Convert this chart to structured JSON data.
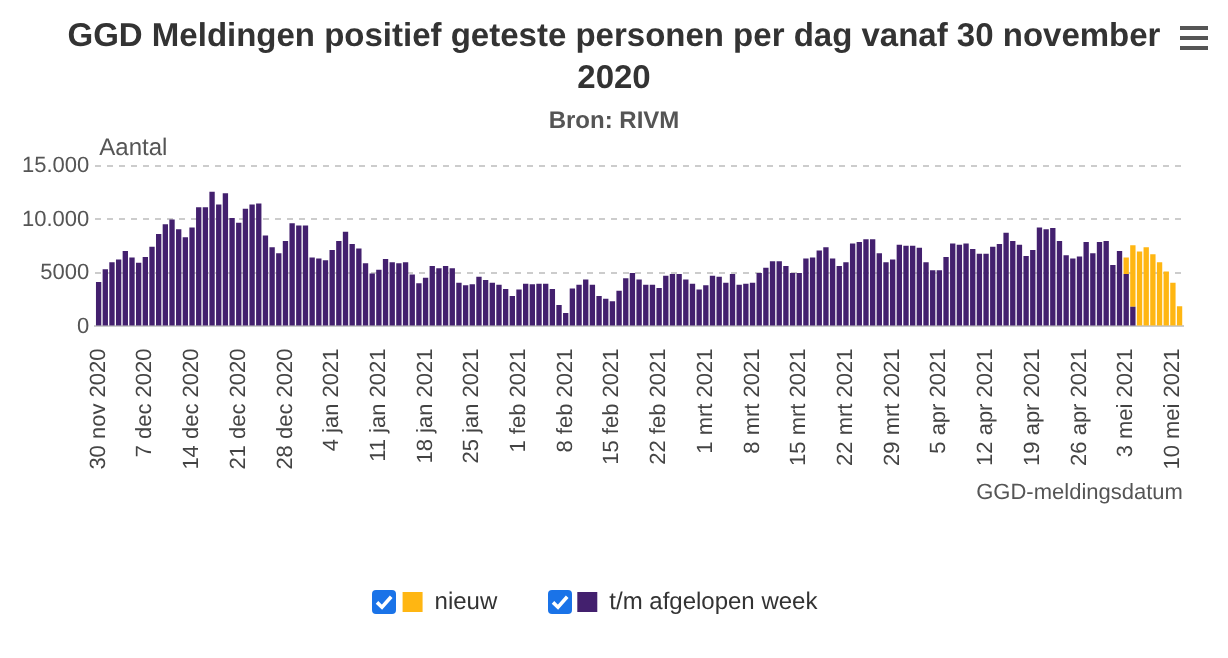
{
  "chart_data": {
    "type": "bar",
    "title": "GGD Meldingen positief geteste personen per dag vanaf 30 november 2020",
    "subtitle": "Bron: RIVM",
    "ylabel": "Aantal",
    "xlabel": "GGD-meldingsdatum",
    "categories": [
      "30 nov 2020",
      null,
      null,
      null,
      null,
      null,
      null,
      "7 dec 2020",
      null,
      null,
      null,
      null,
      null,
      null,
      "14 dec 2020",
      null,
      null,
      null,
      null,
      null,
      null,
      "21 dec 2020",
      null,
      null,
      null,
      null,
      null,
      null,
      "28 dec 2020",
      null,
      null,
      null,
      null,
      null,
      null,
      "4 jan 2021",
      null,
      null,
      null,
      null,
      null,
      null,
      "11 jan 2021",
      null,
      null,
      null,
      null,
      null,
      null,
      "18 jan 2021",
      null,
      null,
      null,
      null,
      null,
      null,
      "25 jan 2021",
      null,
      null,
      null,
      null,
      null,
      null,
      "1 feb 2021",
      null,
      null,
      null,
      null,
      null,
      null,
      "8 feb 2021",
      null,
      null,
      null,
      null,
      null,
      null,
      "15 feb 2021",
      null,
      null,
      null,
      null,
      null,
      null,
      "22 feb 2021",
      null,
      null,
      null,
      null,
      null,
      null,
      "1 mrt 2021",
      null,
      null,
      null,
      null,
      null,
      null,
      "8 mrt 2021",
      null,
      null,
      null,
      null,
      null,
      null,
      "15 mrt 2021",
      null,
      null,
      null,
      null,
      null,
      null,
      "22 mrt 2021",
      null,
      null,
      null,
      null,
      null,
      null,
      "29 mrt 2021",
      null,
      null,
      null,
      null,
      null,
      null,
      "5 apr 2021",
      null,
      null,
      null,
      null,
      null,
      null,
      "12 apr 2021",
      null,
      null,
      null,
      null,
      null,
      null,
      "19 apr 2021",
      null,
      null,
      null,
      null,
      null,
      null,
      "26 apr 2021",
      null,
      null,
      null,
      null,
      null,
      null,
      "3 mei 2021",
      null,
      null,
      null,
      null,
      null,
      null,
      "10 mei 2021",
      null
    ],
    "series": [
      {
        "name": "t/m afgelopen week",
        "color": "#43206e",
        "values": [
          4150,
          5350,
          6000,
          6250,
          7050,
          6450,
          5950,
          6500,
          7450,
          8650,
          9550,
          10000,
          9100,
          8350,
          9250,
          11150,
          11150,
          12600,
          11400,
          12450,
          10150,
          9700,
          11000,
          11400,
          11500,
          8500,
          7400,
          6850,
          8000,
          9650,
          9450,
          9450,
          6450,
          6350,
          6200,
          7150,
          8000,
          8850,
          7700,
          7300,
          5900,
          4950,
          5300,
          6300,
          6000,
          5900,
          6000,
          4850,
          4050,
          4550,
          5650,
          5450,
          5650,
          5450,
          4100,
          3850,
          3950,
          4650,
          4350,
          4100,
          3900,
          3500,
          2850,
          3450,
          4000,
          3950,
          4000,
          4000,
          3500,
          2000,
          1250,
          3550,
          3900,
          4400,
          3900,
          2850,
          2600,
          2350,
          3350,
          4500,
          5000,
          4400,
          3900,
          3900,
          3600,
          4750,
          4900,
          4900,
          4400,
          4000,
          3450,
          3850,
          4750,
          4650,
          4100,
          4900,
          3900,
          4000,
          4100,
          5000,
          5500,
          6100,
          6100,
          5650,
          5000,
          5000,
          6350,
          6450,
          7100,
          7400,
          6350,
          5650,
          6000,
          7750,
          7900,
          8150,
          8150,
          6850,
          6000,
          6250,
          7650,
          7550,
          7550,
          7350,
          6000,
          5250,
          5250,
          6500,
          7750,
          7650,
          7750,
          7250,
          6800,
          6800,
          7450,
          7700,
          8750,
          8000,
          7650,
          6600,
          7150,
          9250,
          9100,
          9200,
          8000,
          6650,
          6350,
          6550,
          7900,
          6850,
          7900,
          8000,
          5750,
          7050,
          4900,
          1850,
          null,
          null,
          null,
          null,
          null,
          null,
          null
        ]
      },
      {
        "name": "nieuw",
        "color": "#ffb612",
        "values": [
          null,
          null,
          null,
          null,
          null,
          null,
          null,
          null,
          null,
          null,
          null,
          null,
          null,
          null,
          null,
          null,
          null,
          null,
          null,
          null,
          null,
          null,
          null,
          null,
          null,
          null,
          null,
          null,
          null,
          null,
          null,
          null,
          null,
          null,
          null,
          null,
          null,
          null,
          null,
          null,
          null,
          null,
          null,
          null,
          null,
          null,
          null,
          null,
          null,
          null,
          null,
          null,
          null,
          null,
          null,
          null,
          null,
          null,
          null,
          null,
          null,
          null,
          null,
          null,
          null,
          null,
          null,
          null,
          null,
          null,
          null,
          null,
          null,
          null,
          null,
          null,
          null,
          null,
          null,
          null,
          null,
          null,
          null,
          null,
          null,
          null,
          null,
          null,
          null,
          null,
          null,
          null,
          null,
          null,
          null,
          null,
          null,
          null,
          null,
          null,
          null,
          null,
          null,
          null,
          null,
          null,
          null,
          null,
          null,
          null,
          null,
          null,
          null,
          null,
          null,
          null,
          null,
          null,
          null,
          null,
          null,
          null,
          null,
          null,
          null,
          null,
          null,
          null,
          null,
          null,
          null,
          null,
          null,
          null,
          null,
          null,
          null,
          null,
          null,
          null,
          null,
          null,
          null,
          null,
          null,
          null,
          null,
          null,
          null,
          null,
          null,
          null,
          null,
          null,
          1550,
          5750,
          7000,
          7400,
          6750,
          6000,
          5150,
          4100,
          1900
        ]
      }
    ],
    "stacked": true,
    "ylim": [
      0,
      15000
    ],
    "yticks": [
      0,
      5000,
      {
        "value": 10000,
        "label": "10.000"
      },
      {
        "value": 15000,
        "label": "15.000"
      }
    ],
    "grid": "y",
    "legend": "bottom"
  }
}
